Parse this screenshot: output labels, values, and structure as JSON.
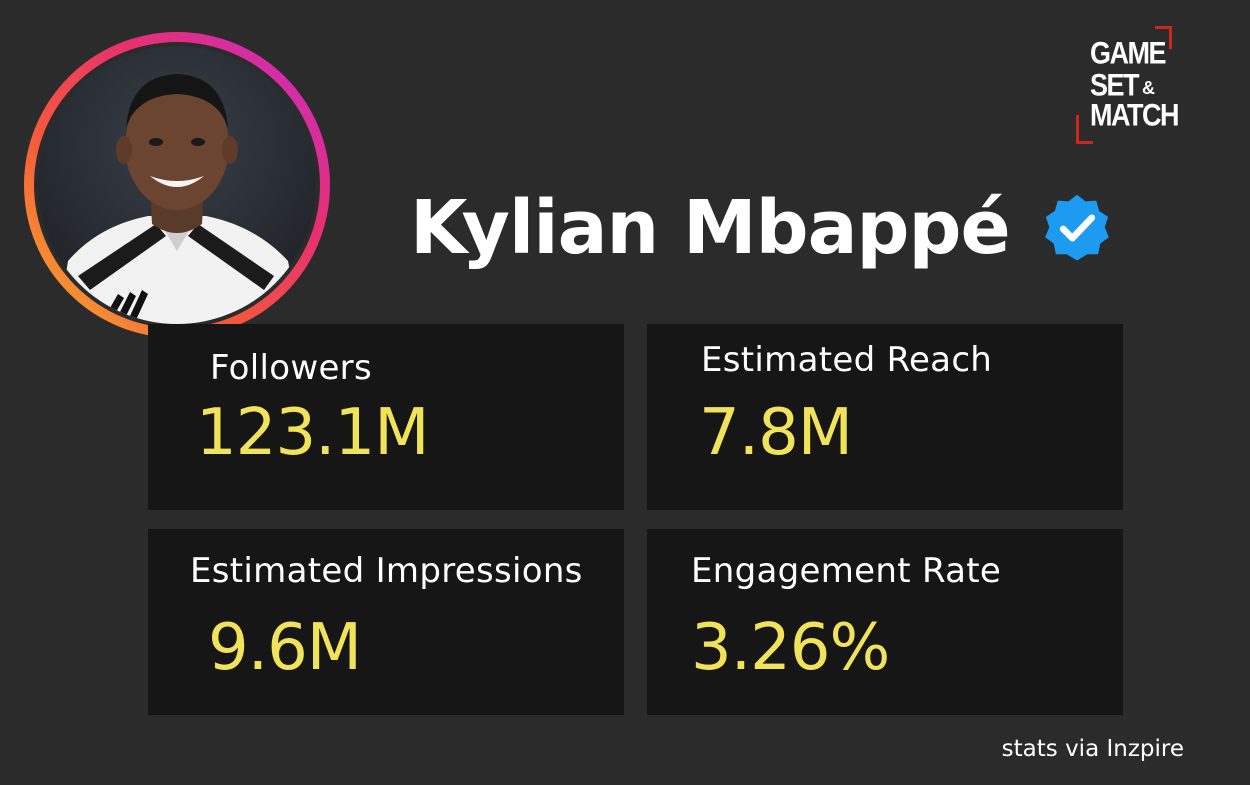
{
  "profile": {
    "name": "Kylian Mbappé",
    "verified": true,
    "ring_colors": [
      "#c42ad2",
      "#e8306e",
      "#f5593c",
      "#f7b52c"
    ]
  },
  "logo": {
    "line1": "GAME",
    "line2": "SET",
    "ampersand": "&",
    "line3": "MATCH",
    "accent_color": "#c8281e"
  },
  "stats": [
    {
      "label": "Followers",
      "value": "123.1M"
    },
    {
      "label": "Estimated Reach",
      "value": "7.8M"
    },
    {
      "label": "Estimated Impressions",
      "value": "9.6M"
    },
    {
      "label": "Engagement Rate",
      "value": "3.26%"
    }
  ],
  "credit": "stats via Inzpire",
  "colors": {
    "background": "#2b2b2b",
    "card": "#161616",
    "value_text": "#f0e35a",
    "verified_badge": "#1d9bf0"
  },
  "icons": {
    "verified": "verified-badge-icon",
    "avatar": "profile-photo"
  }
}
